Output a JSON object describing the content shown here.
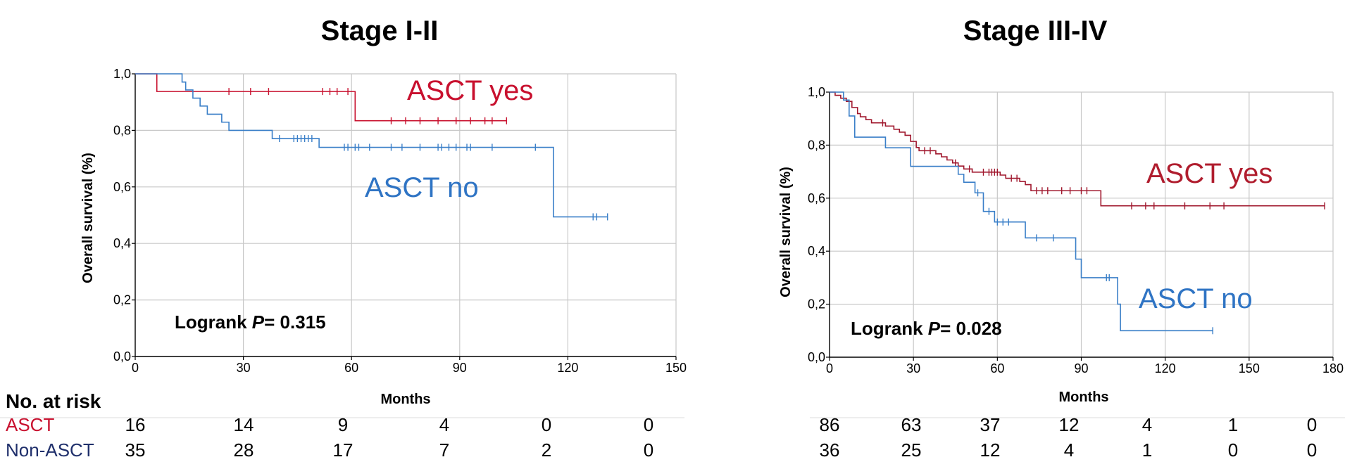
{
  "colors": {
    "ascti": "#c8102e",
    "non": "#3a7fc8",
    "grid": "#c8c8c8",
    "axis": "#000000"
  },
  "risk_table": {
    "header": "No. at risk",
    "row_labels": [
      "ASCT",
      "Non-ASCT"
    ],
    "row_label_colors": [
      "#c8102e",
      "#1f2f6b"
    ]
  },
  "chart_data": [
    {
      "type": "line",
      "subtype": "kaplan-meier",
      "title": "Stage I-II",
      "xlabel": "Months",
      "ylabel": "Overall survival (%)",
      "xlim": [
        0,
        150
      ],
      "ylim": [
        0,
        1
      ],
      "xticks": [
        "0",
        "30",
        "60",
        "90",
        "120",
        "150"
      ],
      "yticks": [
        "0,0",
        "0,2",
        "0,4",
        "0,6",
        "0,8",
        "1,0"
      ],
      "grid": true,
      "annotations": [
        {
          "text": "ASCT yes",
          "series": 0
        },
        {
          "text": "ASCT no",
          "series": 1
        },
        {
          "text_prefix": "Logrank ",
          "text_p": "P",
          "text_value": "= 0.315"
        }
      ],
      "series": [
        {
          "color": "#c8102e",
          "steps": [
            [
              0,
              1.0
            ],
            [
              6,
              0.9375
            ],
            [
              61,
              0.834
            ]
          ],
          "end": 103,
          "censors": [
            26,
            32,
            37,
            52,
            54,
            56,
            59,
            71,
            75,
            79,
            84,
            89,
            93,
            97,
            99,
            103
          ]
        },
        {
          "color": "#3a7fc8",
          "steps": [
            [
              0,
              1.0
            ],
            [
              13,
              0.971
            ],
            [
              14,
              0.943
            ],
            [
              16,
              0.914
            ],
            [
              18,
              0.886
            ],
            [
              20,
              0.857
            ],
            [
              24,
              0.829
            ],
            [
              26,
              0.8
            ],
            [
              38,
              0.771
            ],
            [
              51,
              0.74
            ],
            [
              116,
              0.494
            ]
          ],
          "end": 131,
          "censors": [
            40,
            44,
            45,
            46,
            47,
            48,
            49,
            58,
            59,
            61,
            62,
            65,
            71,
            74,
            79,
            84,
            85,
            87,
            89,
            92,
            93,
            99,
            111,
            127,
            128,
            131
          ]
        }
      ],
      "at_risk": {
        "times": [
          "0",
          "30",
          "60",
          "90",
          "120",
          "150"
        ],
        "rows": [
          [
            "16",
            "14",
            "9",
            "4",
            "0",
            "0"
          ],
          [
            "35",
            "28",
            "17",
            "7",
            "2",
            "0"
          ]
        ]
      }
    },
    {
      "type": "line",
      "subtype": "kaplan-meier",
      "title": "Stage III-IV",
      "xlabel": "Months",
      "ylabel": "Overall survival (%)",
      "xlim": [
        0,
        180
      ],
      "ylim": [
        0,
        1
      ],
      "xticks": [
        "0",
        "30",
        "60",
        "90",
        "120",
        "150",
        "180"
      ],
      "yticks": [
        "0,0",
        "0,2",
        "0,4",
        "0,6",
        "0,8",
        "1,0"
      ],
      "grid": true,
      "annotations": [
        {
          "text": "ASCT yes",
          "series": 0
        },
        {
          "text": "ASCT no",
          "series": 1
        },
        {
          "text_prefix": "Logrank ",
          "text_p": "P",
          "text_value": "= 0.028"
        }
      ],
      "series": [
        {
          "color": "#a0182e",
          "steps": [
            [
              0,
              1.0
            ],
            [
              2,
              0.988
            ],
            [
              4,
              0.977
            ],
            [
              6,
              0.965
            ],
            [
              8,
              0.942
            ],
            [
              10,
              0.919
            ],
            [
              11,
              0.907
            ],
            [
              13,
              0.896
            ],
            [
              15,
              0.884
            ],
            [
              20,
              0.872
            ],
            [
              23,
              0.86
            ],
            [
              25,
              0.849
            ],
            [
              27,
              0.837
            ],
            [
              29,
              0.814
            ],
            [
              31,
              0.791
            ],
            [
              32,
              0.779
            ],
            [
              38,
              0.767
            ],
            [
              40,
              0.756
            ],
            [
              42,
              0.744
            ],
            [
              44,
              0.733
            ],
            [
              46,
              0.721
            ],
            [
              48,
              0.71
            ],
            [
              51,
              0.698
            ],
            [
              61,
              0.687
            ],
            [
              63,
              0.675
            ],
            [
              68,
              0.663
            ],
            [
              70,
              0.651
            ],
            [
              72,
              0.628
            ],
            [
              97,
              0.571
            ]
          ],
          "end": 177,
          "censors": [
            19,
            34,
            36,
            45,
            50,
            55,
            57,
            58,
            59,
            60,
            65,
            67,
            74,
            76,
            78,
            83,
            86,
            90,
            92,
            108,
            113,
            116,
            127,
            136,
            141,
            177
          ]
        },
        {
          "color": "#3a7fc8",
          "steps": [
            [
              0,
              1.0
            ],
            [
              5,
              0.97
            ],
            [
              7,
              0.91
            ],
            [
              9,
              0.83
            ],
            [
              20,
              0.79
            ],
            [
              29,
              0.72
            ],
            [
              46,
              0.69
            ],
            [
              48,
              0.66
            ],
            [
              52,
              0.62
            ],
            [
              55,
              0.55
            ],
            [
              59,
              0.51
            ],
            [
              70,
              0.45
            ],
            [
              88,
              0.37
            ],
            [
              90,
              0.3
            ],
            [
              103,
              0.2
            ],
            [
              104,
              0.1
            ]
          ],
          "end": 137,
          "censors": [
            53,
            57,
            60,
            62,
            64,
            74,
            80,
            99,
            100,
            137
          ]
        }
      ],
      "at_risk": {
        "times": [
          "0",
          "30",
          "60",
          "90",
          "120",
          "150",
          "180"
        ],
        "rows": [
          [
            "86",
            "63",
            "37",
            "12",
            "4",
            "1",
            "0"
          ],
          [
            "36",
            "25",
            "12",
            "4",
            "1",
            "0",
            "0"
          ]
        ]
      }
    }
  ]
}
